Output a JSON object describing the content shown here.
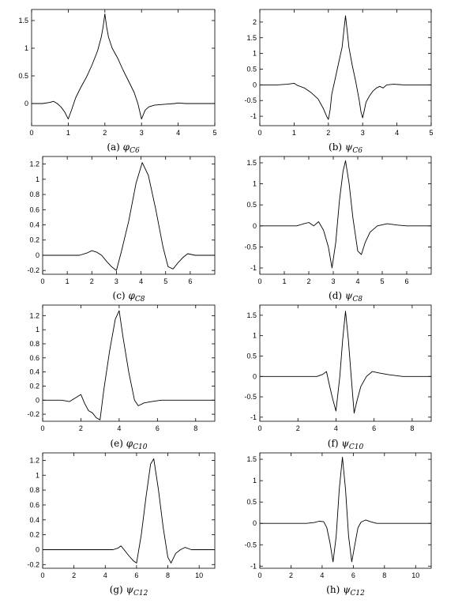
{
  "figure": {
    "background": "#ffffff",
    "line_color": "#000000"
  },
  "chart_data": [
    {
      "id": "a",
      "type": "line",
      "caption_prefix": "(a)",
      "caption_symbol": "φ",
      "caption_sub": "C6",
      "xlim": [
        0,
        5
      ],
      "ylim": [
        -0.4,
        1.7
      ],
      "xticks": [
        0,
        1,
        2,
        3,
        4,
        5
      ],
      "xtick_labels": [
        "0",
        "1",
        "2",
        "3",
        "4",
        "5"
      ],
      "yticks": [
        0,
        0.5,
        1,
        1.5
      ],
      "ytick_labels": [
        "0",
        "0.5",
        "1",
        "1.5"
      ],
      "series": [
        {
          "x": [
            0,
            0.3,
            0.5,
            0.6,
            0.7,
            0.8,
            0.9,
            1.0,
            1.1,
            1.2,
            1.35,
            1.5,
            1.65,
            1.8,
            1.9,
            1.95,
            2.0,
            2.05,
            2.1,
            2.2,
            2.35,
            2.5,
            2.65,
            2.8,
            2.9,
            3.0,
            3.1,
            3.2,
            3.35,
            3.5,
            3.7,
            3.9,
            4.0,
            4.2,
            4.5,
            5.0
          ],
          "y": [
            0,
            0,
            0.02,
            0.04,
            0.0,
            -0.06,
            -0.15,
            -0.28,
            -0.1,
            0.1,
            0.3,
            0.48,
            0.7,
            0.95,
            1.2,
            1.38,
            1.62,
            1.38,
            1.2,
            1.0,
            0.82,
            0.6,
            0.4,
            0.2,
            0.0,
            -0.28,
            -0.12,
            -0.06,
            -0.03,
            -0.02,
            -0.01,
            0.0,
            0.01,
            0.0,
            0.0,
            0.0
          ]
        }
      ]
    },
    {
      "id": "b",
      "type": "line",
      "caption_prefix": "(b)",
      "caption_symbol": "ψ",
      "caption_sub": "C6",
      "xlim": [
        0,
        5
      ],
      "ylim": [
        -1.3,
        2.4
      ],
      "xticks": [
        0,
        1,
        2,
        3,
        4,
        5
      ],
      "xtick_labels": [
        "0",
        "1",
        "2",
        "3",
        "4",
        "5"
      ],
      "yticks": [
        -1,
        -0.5,
        0,
        0.5,
        1,
        1.5,
        2
      ],
      "ytick_labels": [
        "-1",
        "-0.5",
        "0",
        "0.5",
        "1",
        "1.5",
        "2"
      ],
      "series": [
        {
          "x": [
            0,
            0.5,
            0.8,
            1.0,
            1.1,
            1.3,
            1.5,
            1.7,
            1.85,
            1.95,
            2.0,
            2.05,
            2.1,
            2.2,
            2.3,
            2.4,
            2.45,
            2.5,
            2.55,
            2.6,
            2.7,
            2.8,
            2.9,
            2.95,
            3.0,
            3.05,
            3.1,
            3.2,
            3.3,
            3.4,
            3.5,
            3.6,
            3.7,
            3.9,
            4.2,
            4.6,
            5.0
          ],
          "y": [
            0,
            0,
            0.02,
            0.05,
            -0.02,
            -0.1,
            -0.25,
            -0.45,
            -0.75,
            -1.0,
            -1.1,
            -0.8,
            -0.3,
            0.2,
            0.7,
            1.2,
            1.7,
            2.2,
            1.7,
            1.2,
            0.6,
            0.1,
            -0.5,
            -0.85,
            -1.05,
            -0.8,
            -0.55,
            -0.35,
            -0.2,
            -0.1,
            -0.05,
            -0.1,
            0.0,
            0.02,
            0.0,
            0.0,
            0.0
          ]
        }
      ]
    },
    {
      "id": "c",
      "type": "line",
      "caption_prefix": "(c)",
      "caption_symbol": "φ",
      "caption_sub": "C8",
      "xlim": [
        0,
        7
      ],
      "ylim": [
        -0.25,
        1.3
      ],
      "xticks": [
        0,
        1,
        2,
        3,
        4,
        5,
        6
      ],
      "xtick_labels": [
        "0",
        "1",
        "2",
        "3",
        "4",
        "5",
        "6"
      ],
      "yticks": [
        -0.2,
        0,
        0.2,
        0.4,
        0.6,
        0.8,
        1,
        1.2
      ],
      "ytick_labels": [
        "-0.2",
        "0",
        "0.2",
        "0.4",
        "0.6",
        "0.8",
        "1",
        "1.2"
      ],
      "series": [
        {
          "x": [
            0,
            1.0,
            1.5,
            1.8,
            2.0,
            2.2,
            2.4,
            2.6,
            2.8,
            3.0,
            3.2,
            3.5,
            3.8,
            4.05,
            4.3,
            4.6,
            4.9,
            5.1,
            5.3,
            5.5,
            5.7,
            5.9,
            6.2,
            7.0
          ],
          "y": [
            0,
            0,
            0.0,
            0.03,
            0.06,
            0.04,
            0.0,
            -0.08,
            -0.15,
            -0.2,
            0.05,
            0.45,
            0.95,
            1.22,
            1.05,
            0.6,
            0.1,
            -0.15,
            -0.18,
            -0.1,
            -0.03,
            0.02,
            0.0,
            0.0
          ]
        }
      ]
    },
    {
      "id": "d",
      "type": "line",
      "caption_prefix": "(d)",
      "caption_symbol": "ψ",
      "caption_sub": "C8",
      "xlim": [
        0,
        7
      ],
      "ylim": [
        -1.15,
        1.65
      ],
      "xticks": [
        0,
        1,
        2,
        3,
        4,
        5,
        6
      ],
      "xtick_labels": [
        "0",
        "1",
        "2",
        "3",
        "4",
        "5",
        "6"
      ],
      "yticks": [
        -1,
        -0.5,
        0,
        0.5,
        1,
        1.5
      ],
      "ytick_labels": [
        "-1",
        "-0.5",
        "0",
        "0.5",
        "1",
        "1.5"
      ],
      "series": [
        {
          "x": [
            0,
            1.0,
            1.5,
            1.8,
            2.0,
            2.2,
            2.4,
            2.6,
            2.8,
            2.95,
            3.1,
            3.25,
            3.4,
            3.5,
            3.65,
            3.8,
            4.0,
            4.15,
            4.3,
            4.5,
            4.8,
            5.2,
            5.6,
            6.0,
            7.0
          ],
          "y": [
            0,
            0,
            0.0,
            0.05,
            0.08,
            0.0,
            0.1,
            -0.1,
            -0.5,
            -1.0,
            -0.4,
            0.6,
            1.3,
            1.55,
            1.0,
            0.2,
            -0.6,
            -0.68,
            -0.4,
            -0.15,
            0.0,
            0.05,
            0.02,
            0.0,
            0.0
          ]
        }
      ]
    },
    {
      "id": "e",
      "type": "line",
      "caption_prefix": "(e)",
      "caption_symbol": "φ",
      "caption_sub": "C10",
      "xlim": [
        0,
        9
      ],
      "ylim": [
        -0.3,
        1.35
      ],
      "xticks": [
        0,
        2,
        4,
        6,
        8
      ],
      "xtick_labels": [
        "0",
        "2",
        "4",
        "6",
        "8"
      ],
      "yticks": [
        -0.2,
        0,
        0.2,
        0.4,
        0.6,
        0.8,
        1,
        1.2
      ],
      "ytick_labels": [
        "-0.2",
        "0",
        "0.2",
        "0.4",
        "0.6",
        "0.8",
        "1",
        "1.2"
      ],
      "series": [
        {
          "x": [
            0,
            1.0,
            1.4,
            1.7,
            2.0,
            2.2,
            2.4,
            2.6,
            2.8,
            3.0,
            3.2,
            3.5,
            3.8,
            4.0,
            4.2,
            4.5,
            4.8,
            5.0,
            5.3,
            5.7,
            6.2,
            6.8,
            9.0
          ],
          "y": [
            0,
            0,
            -0.02,
            0.03,
            0.08,
            -0.05,
            -0.15,
            -0.18,
            -0.25,
            -0.28,
            0.15,
            0.7,
            1.15,
            1.27,
            0.9,
            0.4,
            0.0,
            -0.08,
            -0.04,
            -0.02,
            0.0,
            0.0,
            0.0
          ]
        }
      ]
    },
    {
      "id": "f",
      "type": "line",
      "caption_prefix": "(f)",
      "caption_symbol": "ψ",
      "caption_sub": "C10",
      "xlim": [
        0,
        9
      ],
      "ylim": [
        -1.1,
        1.75
      ],
      "xticks": [
        0,
        2,
        4,
        6,
        8
      ],
      "xtick_labels": [
        "0",
        "2",
        "4",
        "6",
        "8"
      ],
      "yticks": [
        -1,
        -0.5,
        0,
        0.5,
        1,
        1.5
      ],
      "ytick_labels": [
        "-1",
        "-0.5",
        "0",
        "0.5",
        "1",
        "1.5"
      ],
      "series": [
        {
          "x": [
            0,
            2.5,
            3.0,
            3.3,
            3.5,
            3.65,
            3.8,
            4.0,
            4.2,
            4.35,
            4.5,
            4.65,
            4.8,
            4.95,
            5.1,
            5.3,
            5.6,
            5.9,
            6.3,
            6.8,
            7.5,
            9.0
          ],
          "y": [
            0,
            0,
            0.0,
            0.05,
            0.12,
            -0.2,
            -0.5,
            -0.85,
            0.0,
            0.9,
            1.6,
            0.9,
            0.0,
            -0.9,
            -0.6,
            -0.25,
            0.0,
            0.12,
            0.08,
            0.04,
            0.0,
            0.0
          ]
        }
      ]
    },
    {
      "id": "g",
      "type": "line",
      "caption_prefix": "(g)",
      "caption_symbol": "ψ",
      "caption_sub": "C12",
      "xlim": [
        0,
        11
      ],
      "ylim": [
        -0.25,
        1.3
      ],
      "xticks": [
        0,
        2,
        4,
        6,
        8,
        10
      ],
      "xtick_labels": [
        "0",
        "2",
        "4",
        "6",
        "8",
        "10"
      ],
      "yticks": [
        -0.2,
        0,
        0.2,
        0.4,
        0.6,
        0.8,
        1,
        1.2
      ],
      "ytick_labels": [
        "-0.2",
        "0",
        "0.2",
        "0.4",
        "0.6",
        "0.8",
        "1",
        "1.2"
      ],
      "series": [
        {
          "x": [
            0,
            3.5,
            4.5,
            4.8,
            5.0,
            5.2,
            5.5,
            5.8,
            6.0,
            6.3,
            6.6,
            6.9,
            7.1,
            7.4,
            7.7,
            8.0,
            8.2,
            8.5,
            8.8,
            9.1,
            9.5,
            11.0
          ],
          "y": [
            0,
            0,
            0.0,
            0.02,
            0.05,
            0.0,
            -0.08,
            -0.15,
            -0.18,
            0.2,
            0.7,
            1.15,
            1.22,
            0.8,
            0.3,
            -0.1,
            -0.18,
            -0.05,
            0.0,
            0.03,
            0.0,
            0.0
          ]
        }
      ]
    },
    {
      "id": "h",
      "type": "line",
      "caption_prefix": "(h)",
      "caption_symbol": "ψ",
      "caption_sub": "C12",
      "xlim": [
        0,
        11
      ],
      "ylim": [
        -1.05,
        1.65
      ],
      "xticks": [
        0,
        2,
        4,
        6,
        8,
        10
      ],
      "xtick_labels": [
        "0",
        "2",
        "4",
        "6",
        "8",
        "10"
      ],
      "yticks": [
        -1,
        -0.5,
        0,
        0.5,
        1,
        1.5
      ],
      "ytick_labels": [
        "-1",
        "-0.5",
        "0",
        "0.5",
        "1",
        "1.5"
      ],
      "series": [
        {
          "x": [
            0,
            3.0,
            3.5,
            3.8,
            4.1,
            4.3,
            4.5,
            4.7,
            4.9,
            5.1,
            5.3,
            5.5,
            5.7,
            5.9,
            6.1,
            6.3,
            6.5,
            6.8,
            7.1,
            7.5,
            8.0,
            8.5,
            11.0
          ],
          "y": [
            0,
            0,
            0.02,
            0.05,
            0.04,
            -0.1,
            -0.45,
            -0.9,
            -0.3,
            0.8,
            1.55,
            0.8,
            -0.3,
            -0.9,
            -0.5,
            -0.1,
            0.03,
            0.08,
            0.04,
            0.0,
            0.0,
            0.0,
            0.0
          ]
        }
      ]
    }
  ]
}
